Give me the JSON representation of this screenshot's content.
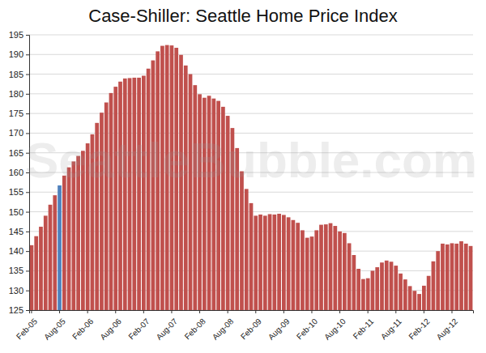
{
  "chart_data": {
    "type": "bar",
    "title": "Case-Shiller: Seattle Home Price Index",
    "annotations": [
      "SeattleBubble.com"
    ],
    "categories": [
      "Feb-05",
      null,
      null,
      null,
      null,
      null,
      "Aug-05",
      null,
      null,
      null,
      null,
      null,
      "Feb-06",
      null,
      null,
      null,
      null,
      null,
      "Aug-06",
      null,
      null,
      null,
      null,
      null,
      "Feb-07",
      null,
      null,
      null,
      null,
      null,
      "Aug-07",
      null,
      null,
      null,
      null,
      null,
      "Feb-08",
      null,
      null,
      null,
      null,
      null,
      "Aug-08",
      null,
      null,
      null,
      null,
      null,
      "Feb-09",
      null,
      null,
      null,
      null,
      null,
      "Aug-09",
      null,
      null,
      null,
      null,
      null,
      "Feb-10",
      null,
      null,
      null,
      null,
      null,
      "Aug-10",
      null,
      null,
      null,
      null,
      null,
      "Feb-11",
      null,
      null,
      null,
      null,
      null,
      "Aug-11",
      null,
      null,
      null,
      null,
      null,
      "Feb-12",
      null,
      null,
      null,
      null,
      null,
      "Aug-12",
      null,
      null,
      null,
      null
    ],
    "values": [
      141.5,
      143.8,
      146.2,
      149.0,
      151.8,
      154.2,
      156.7,
      159.2,
      161.3,
      162.8,
      164.2,
      165.5,
      167.4,
      169.7,
      172.6,
      175.2,
      177.8,
      180.2,
      181.8,
      183.1,
      183.9,
      184.0,
      184.1,
      184.1,
      184.6,
      186.4,
      188.5,
      190.8,
      192.2,
      192.4,
      192.3,
      191.7,
      189.9,
      187.2,
      185.0,
      182.2,
      179.9,
      179.0,
      179.5,
      178.8,
      178.2,
      176.7,
      174.4,
      171.3,
      166.2,
      160.3,
      155.8,
      152.2,
      149.0,
      149.3,
      149.0,
      149.4,
      149.3,
      149.5,
      149.2,
      148.6,
      147.9,
      147.2,
      145.3,
      143.4,
      143.7,
      145.3,
      146.7,
      146.8,
      147.1,
      146.4,
      145.0,
      144.6,
      142.0,
      139.0,
      135.5,
      132.9,
      133.1,
      135.0,
      135.9,
      137.1,
      137.6,
      137.3,
      136.3,
      134.3,
      132.8,
      131.1,
      129.9,
      129.1,
      131.2,
      133.7,
      137.4,
      140.0,
      141.9,
      141.7,
      142.0,
      141.9,
      142.5,
      141.9,
      141.3
    ],
    "colors": [
      "#c0504d",
      "#c0504d",
      "#c0504d",
      "#c0504d",
      "#c0504d",
      "#c0504d",
      "#4f81bd",
      "#c0504d",
      "#c0504d",
      "#c0504d",
      "#c0504d",
      "#c0504d",
      "#c0504d",
      "#c0504d",
      "#c0504d",
      "#c0504d",
      "#c0504d",
      "#c0504d",
      "#c0504d",
      "#c0504d",
      "#c0504d",
      "#c0504d",
      "#c0504d",
      "#c0504d",
      "#c0504d",
      "#c0504d",
      "#c0504d",
      "#c0504d",
      "#c0504d",
      "#c0504d",
      "#c0504d",
      "#c0504d",
      "#c0504d",
      "#c0504d",
      "#c0504d",
      "#c0504d",
      "#c0504d",
      "#c0504d",
      "#c0504d",
      "#c0504d",
      "#c0504d",
      "#c0504d",
      "#c0504d",
      "#c0504d",
      "#c0504d",
      "#c0504d",
      "#c0504d",
      "#c0504d",
      "#c0504d",
      "#c0504d",
      "#c0504d",
      "#c0504d",
      "#c0504d",
      "#c0504d",
      "#c0504d",
      "#c0504d",
      "#c0504d",
      "#c0504d",
      "#c0504d",
      "#c0504d",
      "#c0504d",
      "#c0504d",
      "#c0504d",
      "#c0504d",
      "#c0504d",
      "#c0504d",
      "#c0504d",
      "#c0504d",
      "#c0504d",
      "#c0504d",
      "#c0504d",
      "#c0504d",
      "#c0504d",
      "#c0504d",
      "#c0504d",
      "#c0504d",
      "#c0504d",
      "#c0504d",
      "#c0504d",
      "#c0504d",
      "#c0504d",
      "#c0504d",
      "#c0504d",
      "#c0504d",
      "#c0504d",
      "#c0504d",
      "#c0504d",
      "#c0504d",
      "#c0504d",
      "#c0504d",
      "#c0504d",
      "#c0504d",
      "#c0504d",
      "#c0504d",
      "#c0504d"
    ],
    "ylim": [
      125,
      195
    ],
    "yticks": [
      125,
      130,
      135,
      140,
      145,
      150,
      155,
      160,
      165,
      170,
      175,
      180,
      185,
      190,
      195
    ],
    "grid": true
  }
}
